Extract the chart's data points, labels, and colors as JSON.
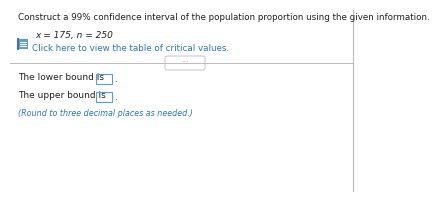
{
  "bg_color": "#ffffff",
  "title_text": "Construct a 99% confidence interval of the population proportion using the given information.",
  "params_text": "x = 175, n = 250",
  "click_text": "Click here to view the table of critical values.",
  "lower_bound_text": "The lower bound is",
  "upper_bound_text": "The upper bound is",
  "round_text": "(Round to three decimal places as needed.)",
  "icon_color": "#5b9bd5",
  "icon_color2": "#3a78b5",
  "link_color": "#2e75b6",
  "text_color": "#222222",
  "separator_color": "#bbbbbb",
  "dot_color": "#999999",
  "box_border_color": "#5b9bd5",
  "right_border_color": "#bbbbbb"
}
